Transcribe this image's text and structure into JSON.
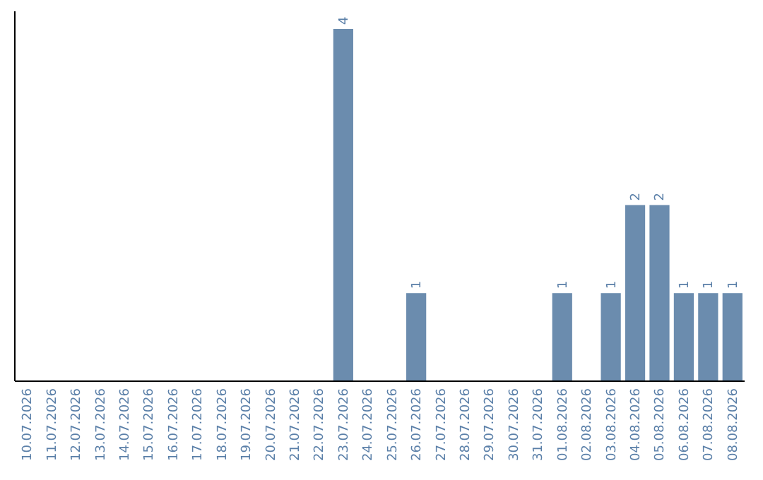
{
  "chart_data": {
    "type": "bar",
    "categories": [
      "10.07.2026",
      "11.07.2026",
      "12.07.2026",
      "13.07.2026",
      "14.07.2026",
      "15.07.2026",
      "16.07.2026",
      "17.07.2026",
      "18.07.2026",
      "19.07.2026",
      "20.07.2026",
      "21.07.2026",
      "22.07.2026",
      "23.07.2026",
      "24.07.2026",
      "25.07.2026",
      "26.07.2026",
      "27.07.2026",
      "28.07.2026",
      "29.07.2026",
      "30.07.2026",
      "31.07.2026",
      "01.08.2026",
      "02.08.2026",
      "03.08.2026",
      "04.08.2026",
      "05.08.2026",
      "06.08.2026",
      "07.08.2026",
      "08.08.2026"
    ],
    "values": [
      null,
      null,
      null,
      null,
      null,
      null,
      null,
      null,
      null,
      null,
      null,
      null,
      null,
      4,
      null,
      null,
      1,
      null,
      null,
      null,
      null,
      null,
      1,
      null,
      1,
      2,
      2,
      1,
      1,
      1
    ],
    "data_labels": true,
    "color": "#6b8cae",
    "ylim": [
      0,
      4.2
    ],
    "tick_labels": "x"
  }
}
